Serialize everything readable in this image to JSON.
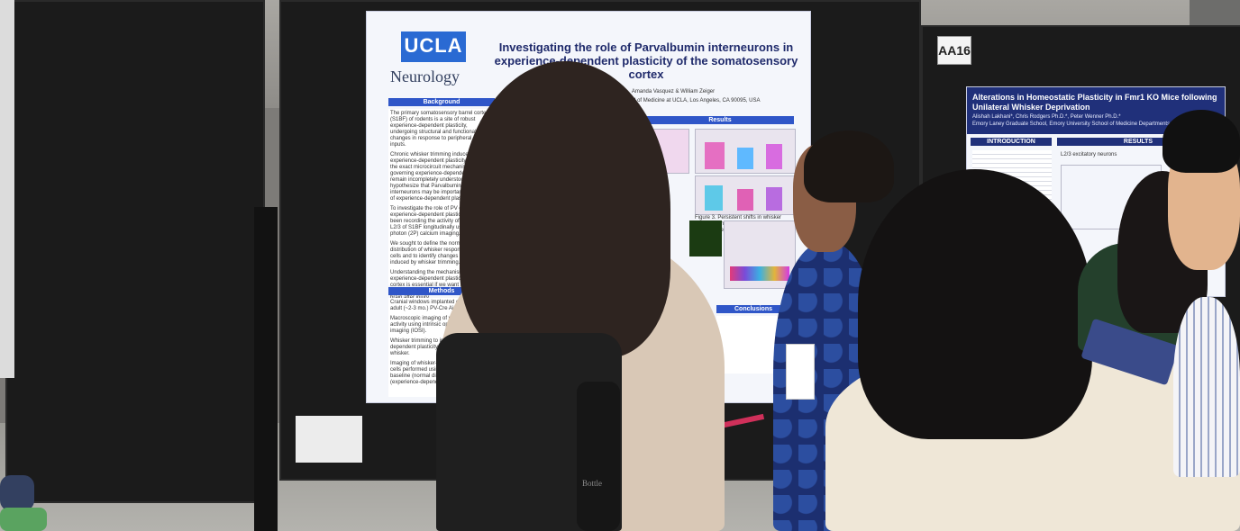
{
  "left_poster": {
    "logo_text": "UCLA",
    "department": "Neurology",
    "title": "Investigating the role of Parvalbumin interneurons in experience-dependent plasticity of the somatosensory cortex",
    "authors": "Amanda Vasquez & William Zeiger",
    "affiliation": "David Geffen School of Medicine at UCLA, Los Angeles, CA 90095, USA",
    "sections": {
      "background": "Background",
      "methods": "Methods",
      "results": "Results",
      "conclusions": "Conclusions"
    },
    "background_points": [
      "The primary somatosensory barrel cortex (S1BF) of rodents is a site of robust experience-dependent plasticity, undergoing structural and functional changes in response to peripheral sensory inputs.",
      "Chronic whisker trimming induces experience-dependent plasticity. However, the exact microcircuit mechanisms governing experience-dependent plasticity remain incompletely understood. We hypothesize that Parvalbumin (PV) interneurons may be important regulators of experience-dependent plasticity.",
      "To investigate the role of PV cells in experience-dependent plasticity, we have been recording the activity of PV cells in L2/3 of S1BF longitudinally using two-photon (2P) calcium imaging.",
      "We sought to define the normal spatial distribution of whisker responses in PV cells and to identify changes in PV activity induced by whisker trimming.",
      "Understanding the mechanisms of experience-dependent plasticity in the cortex is essential if we want to harness the astonishing plastic properties of the brain after injury."
    ],
    "methods_points": [
      "Cranial windows implanted over S1BF in adult (~2-3 mo.) PV-Cre Ai14 (Ai162) mice",
      "Macroscopic imaging of whisker-evoked activity using intrinsic optical signal imaging (IOSI).",
      "Whisker trimming to induce experience-dependent plasticity sparing a single whisker.",
      "Imaging of whisker-evoked activity of PV cells performed using 2P microscopy at baseline (normal distribution) and during (experience-dependent)."
    ],
    "figure_caption": "Figure 3. Persistent shifts in whisker selectivity in deprived and spared barrels after whisker trimming."
  },
  "right_poster": {
    "booth_label": "AA16",
    "title": "Alterations in Homeostatic Plasticity in Fmr1 KO Mice following Unilateral Whisker Deprivation",
    "authors": "Alishah Lakhani*, Chris Rodgers Ph.D.*, Peter Wenner Ph.D.*",
    "affiliation": "Emory Laney Graduate School, Emory University School of Medicine Departments of Cell Biology* and",
    "sections": {
      "introduction": "INTRODUCTION",
      "results": "RESULTS"
    },
    "chart_label": "L2/3 excitatory neurons"
  },
  "props": {
    "bottle_text": "Bottle"
  },
  "colors": {
    "poster_header_blue": "#2f56c8",
    "ucla_blue": "#2a6ad3",
    "board_black": "#1b1b1b",
    "floor_gray": "#a6a5a0"
  }
}
